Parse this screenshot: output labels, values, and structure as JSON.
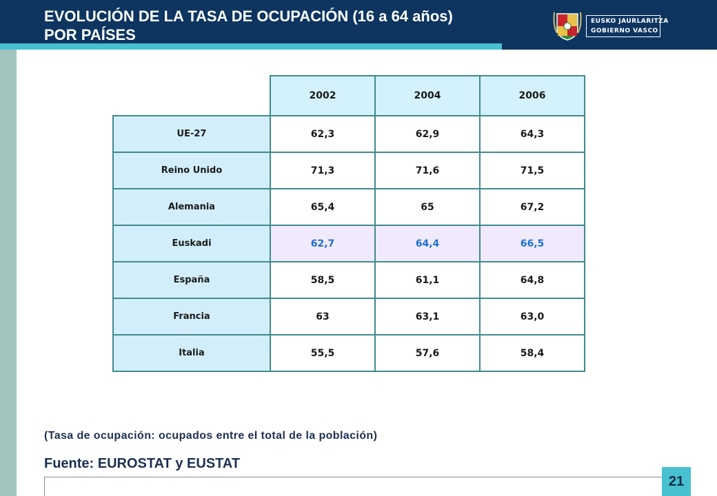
{
  "header": {
    "title_line1": "EVOLUCIÓN DE LA TASA DE OCUPACIÓN (16 a 64 años)",
    "title_line2": "POR PAÍSES",
    "logo_line1": "EUSKO JAURLARITZA",
    "logo_line2": "GOBIERNO VASCO",
    "logo_icon": "coat-of-arms-icon"
  },
  "table": {
    "columns": [
      "2002",
      "2004",
      "2006"
    ],
    "rows": [
      {
        "label": "UE-27",
        "values": [
          "62,3",
          "62,9",
          "64,3"
        ]
      },
      {
        "label": "Reino Unido",
        "values": [
          "71,3",
          "71,6",
          "71,5"
        ]
      },
      {
        "label": "Alemania",
        "values": [
          "65,4",
          "65",
          "67,2"
        ]
      },
      {
        "label": "Euskadi",
        "values": [
          "62,7",
          "64,4",
          "66,5"
        ]
      },
      {
        "label": "España",
        "values": [
          "58,5",
          "61,1",
          "64,8"
        ]
      },
      {
        "label": "Francia",
        "values": [
          "63",
          "63,1",
          "63,0"
        ]
      },
      {
        "label": "Italia",
        "values": [
          "55,5",
          "57,6",
          "58,4"
        ]
      }
    ],
    "highlight_row": "Euskadi"
  },
  "colors": {
    "header_bg": "#0d3560",
    "accent_teal": "#47c1d0",
    "highlight_text": "#1d6fd6",
    "highlight_bg": "#f0eafc",
    "cell_header_bg": "#d4f2fb"
  },
  "footer": {
    "note": "(Tasa de ocupación: ocupados entre el total de la población)",
    "source": "Fuente: EUROSTAT y EUSTAT",
    "page_number": "21"
  }
}
